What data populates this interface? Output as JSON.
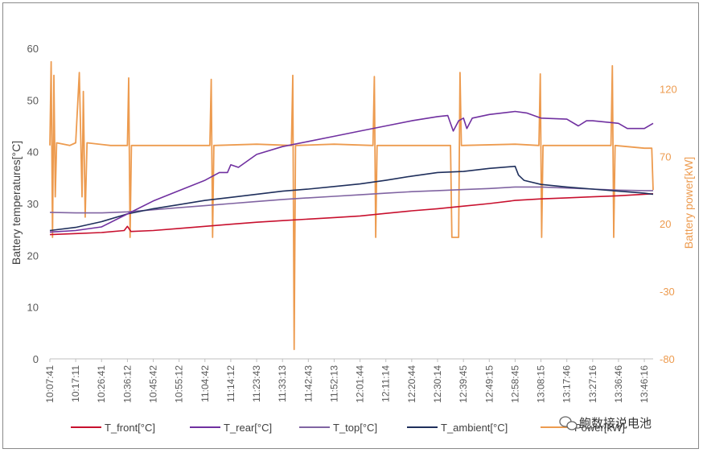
{
  "chart_data": {
    "type": "line",
    "title": "",
    "xlabel": "",
    "ylabel": "Battery temperatures[°C]",
    "y2label": "Battery power[kW]",
    "ylim": [
      0,
      60
    ],
    "y2lim": [
      -80,
      150
    ],
    "yticks": [
      0,
      10,
      20,
      30,
      40,
      50,
      60
    ],
    "y2ticks": [
      -80,
      -30,
      20,
      70,
      120
    ],
    "grid": false,
    "legend_position": "bottom",
    "x_start": "10:07:41",
    "x_end": "13:49:30",
    "xtick_labels": [
      "10:07:41",
      "10:17:11",
      "10:26:41",
      "10:36:12",
      "10:45:42",
      "10:55:12",
      "11:04:42",
      "11:14:12",
      "11:23:43",
      "11:33:13",
      "11:42:43",
      "11:52:13",
      "12:01:44",
      "12:11:14",
      "12:20:44",
      "12:30:14",
      "12:39:45",
      "12:49:15",
      "12:58:45",
      "13:08:15",
      "13:17:46",
      "13:27:16",
      "13:36:46",
      "13:46:16"
    ],
    "series": [
      {
        "name": "T_front[°C]",
        "axis": "left",
        "color": "#C8102E",
        "points": [
          [
            "10:07:41",
            24
          ],
          [
            "10:17:11",
            24.2
          ],
          [
            "10:26:41",
            24.4
          ],
          [
            "10:35:00",
            24.8
          ],
          [
            "10:36:12",
            25.6
          ],
          [
            "10:37:30",
            24.6
          ],
          [
            "10:45:42",
            24.8
          ],
          [
            "10:55:12",
            25.2
          ],
          [
            "11:04:42",
            25.6
          ],
          [
            "11:14:12",
            26
          ],
          [
            "11:23:43",
            26.4
          ],
          [
            "11:33:13",
            26.7
          ],
          [
            "11:42:43",
            27
          ],
          [
            "11:52:13",
            27.3
          ],
          [
            "12:01:44",
            27.6
          ],
          [
            "12:11:14",
            28.1
          ],
          [
            "12:20:44",
            28.6
          ],
          [
            "12:30:14",
            29
          ],
          [
            "12:39:45",
            29.5
          ],
          [
            "12:49:15",
            30
          ],
          [
            "12:58:45",
            30.6
          ],
          [
            "13:08:15",
            30.9
          ],
          [
            "13:17:46",
            31.1
          ],
          [
            "13:27:16",
            31.3
          ],
          [
            "13:36:46",
            31.5
          ],
          [
            "13:46:16",
            31.8
          ],
          [
            "13:49:30",
            31.9
          ]
        ]
      },
      {
        "name": "T_rear[°C]",
        "axis": "left",
        "color": "#7030A0",
        "points": [
          [
            "10:07:41",
            24.5
          ],
          [
            "10:17:11",
            24.8
          ],
          [
            "10:26:41",
            25.5
          ],
          [
            "10:36:12",
            28
          ],
          [
            "10:45:42",
            30.5
          ],
          [
            "10:55:12",
            32.5
          ],
          [
            "11:04:42",
            34.5
          ],
          [
            "11:10:00",
            36
          ],
          [
            "11:13:00",
            36
          ],
          [
            "11:14:12",
            37.5
          ],
          [
            "11:17:00",
            37
          ],
          [
            "11:23:43",
            39.5
          ],
          [
            "11:33:13",
            41
          ],
          [
            "11:42:43",
            42
          ],
          [
            "11:52:13",
            43
          ],
          [
            "12:01:44",
            44
          ],
          [
            "12:11:14",
            45
          ],
          [
            "12:20:44",
            46
          ],
          [
            "12:30:14",
            46.8
          ],
          [
            "12:34:00",
            47
          ],
          [
            "12:36:00",
            44
          ],
          [
            "12:38:00",
            46
          ],
          [
            "12:39:45",
            46.5
          ],
          [
            "12:41:00",
            44.5
          ],
          [
            "12:43:00",
            46.5
          ],
          [
            "12:49:15",
            47.2
          ],
          [
            "12:58:45",
            47.8
          ],
          [
            "13:03:00",
            47.5
          ],
          [
            "13:08:15",
            46.5
          ],
          [
            "13:17:46",
            46.3
          ],
          [
            "13:22:00",
            45
          ],
          [
            "13:25:00",
            46
          ],
          [
            "13:27:16",
            46
          ],
          [
            "13:36:46",
            45.5
          ],
          [
            "13:40:00",
            44.5
          ],
          [
            "13:46:16",
            44.5
          ],
          [
            "13:49:30",
            45.5
          ]
        ]
      },
      {
        "name": "T_top[°C]",
        "axis": "left",
        "color": "#8064A2",
        "points": [
          [
            "10:07:41",
            28.3
          ],
          [
            "10:17:11",
            28.2
          ],
          [
            "10:26:41",
            28.2
          ],
          [
            "10:36:12",
            28.4
          ],
          [
            "10:45:42",
            28.8
          ],
          [
            "10:55:12",
            29.2
          ],
          [
            "11:04:42",
            29.6
          ],
          [
            "11:14:12",
            30
          ],
          [
            "11:23:43",
            30.4
          ],
          [
            "11:33:13",
            30.8
          ],
          [
            "11:42:43",
            31.1
          ],
          [
            "11:52:13",
            31.4
          ],
          [
            "12:01:44",
            31.7
          ],
          [
            "12:11:14",
            32
          ],
          [
            "12:20:44",
            32.3
          ],
          [
            "12:30:14",
            32.5
          ],
          [
            "12:39:45",
            32.7
          ],
          [
            "12:49:15",
            32.9
          ],
          [
            "12:58:45",
            33.2
          ],
          [
            "13:08:15",
            33.2
          ],
          [
            "13:17:46",
            33
          ],
          [
            "13:27:16",
            32.8
          ],
          [
            "13:36:46",
            32.6
          ],
          [
            "13:46:16",
            32.5
          ],
          [
            "13:49:30",
            32.5
          ]
        ]
      },
      {
        "name": "T_ambient[°C]",
        "axis": "left",
        "color": "#1F2F5C",
        "points": [
          [
            "10:07:41",
            24.8
          ],
          [
            "10:17:11",
            25.4
          ],
          [
            "10:26:41",
            26.5
          ],
          [
            "10:36:12",
            28
          ],
          [
            "10:45:42",
            29
          ],
          [
            "10:55:12",
            29.8
          ],
          [
            "11:04:42",
            30.6
          ],
          [
            "11:14:12",
            31.2
          ],
          [
            "11:23:43",
            31.8
          ],
          [
            "11:33:13",
            32.4
          ],
          [
            "11:42:43",
            32.8
          ],
          [
            "11:52:13",
            33.3
          ],
          [
            "12:01:44",
            33.8
          ],
          [
            "12:11:14",
            34.5
          ],
          [
            "12:20:44",
            35.3
          ],
          [
            "12:30:14",
            36
          ],
          [
            "12:39:45",
            36.2
          ],
          [
            "12:49:15",
            36.8
          ],
          [
            "12:58:45",
            37.2
          ],
          [
            "13:00:00",
            35.5
          ],
          [
            "13:02:00",
            34.5
          ],
          [
            "13:08:15",
            33.7
          ],
          [
            "13:17:46",
            33.2
          ],
          [
            "13:27:16",
            32.8
          ],
          [
            "13:36:46",
            32.4
          ],
          [
            "13:46:16",
            32
          ],
          [
            "13:49:30",
            31.8
          ]
        ]
      },
      {
        "name": "Power[kW]",
        "axis": "right",
        "color": "#ED9B4F",
        "points": [
          [
            "10:07:41",
            78
          ],
          [
            "10:08:10",
            140
          ],
          [
            "10:08:40",
            10
          ],
          [
            "10:09:10",
            130
          ],
          [
            "10:09:40",
            40
          ],
          [
            "10:10:10",
            80
          ],
          [
            "10:15:00",
            78
          ],
          [
            "10:17:11",
            80
          ],
          [
            "10:18:30",
            132
          ],
          [
            "10:19:30",
            40
          ],
          [
            "10:20:00",
            118
          ],
          [
            "10:20:40",
            25
          ],
          [
            "10:21:20",
            80
          ],
          [
            "10:30:00",
            78
          ],
          [
            "10:36:12",
            78
          ],
          [
            "10:36:40",
            128
          ],
          [
            "10:37:10",
            10
          ],
          [
            "10:37:40",
            78
          ],
          [
            "10:55:12",
            78
          ],
          [
            "11:04:42",
            78
          ],
          [
            "11:06:30",
            78
          ],
          [
            "11:07:00",
            127
          ],
          [
            "11:07:30",
            10
          ],
          [
            "11:08:00",
            78
          ],
          [
            "11:23:43",
            79
          ],
          [
            "11:36:30",
            78
          ],
          [
            "11:37:00",
            130
          ],
          [
            "11:37:30",
            -73
          ],
          [
            "11:38:00",
            78
          ],
          [
            "11:52:13",
            79
          ],
          [
            "12:06:30",
            78
          ],
          [
            "12:07:00",
            129
          ],
          [
            "12:07:30",
            10
          ],
          [
            "12:08:00",
            78
          ],
          [
            "12:30:14",
            78
          ],
          [
            "12:35:00",
            78
          ],
          [
            "12:35:30",
            10
          ],
          [
            "12:38:00",
            10
          ],
          [
            "12:38:30",
            132
          ],
          [
            "12:39:00",
            78
          ],
          [
            "12:58:45",
            79
          ],
          [
            "13:07:30",
            78
          ],
          [
            "13:08:00",
            131
          ],
          [
            "13:08:30",
            10
          ],
          [
            "13:09:00",
            78
          ],
          [
            "13:34:00",
            78
          ],
          [
            "13:34:30",
            137
          ],
          [
            "13:35:00",
            10
          ],
          [
            "13:35:30",
            78
          ],
          [
            "13:46:16",
            76
          ],
          [
            "13:49:00",
            76
          ],
          [
            "13:49:30",
            45
          ]
        ]
      }
    ]
  },
  "legend": {
    "items": [
      {
        "label": "T_front[°C]",
        "color": "#C8102E"
      },
      {
        "label": "T_rear[°C]",
        "color": "#7030A0"
      },
      {
        "label": "T_top[°C]",
        "color": "#8064A2"
      },
      {
        "label": "T_ambient[°C]",
        "color": "#1F2F5C"
      },
      {
        "label": "Power[kW]",
        "color": "#ED9B4F"
      }
    ]
  },
  "watermark": {
    "text": "鲍数接说电池",
    "icon": "wechat-icon"
  }
}
